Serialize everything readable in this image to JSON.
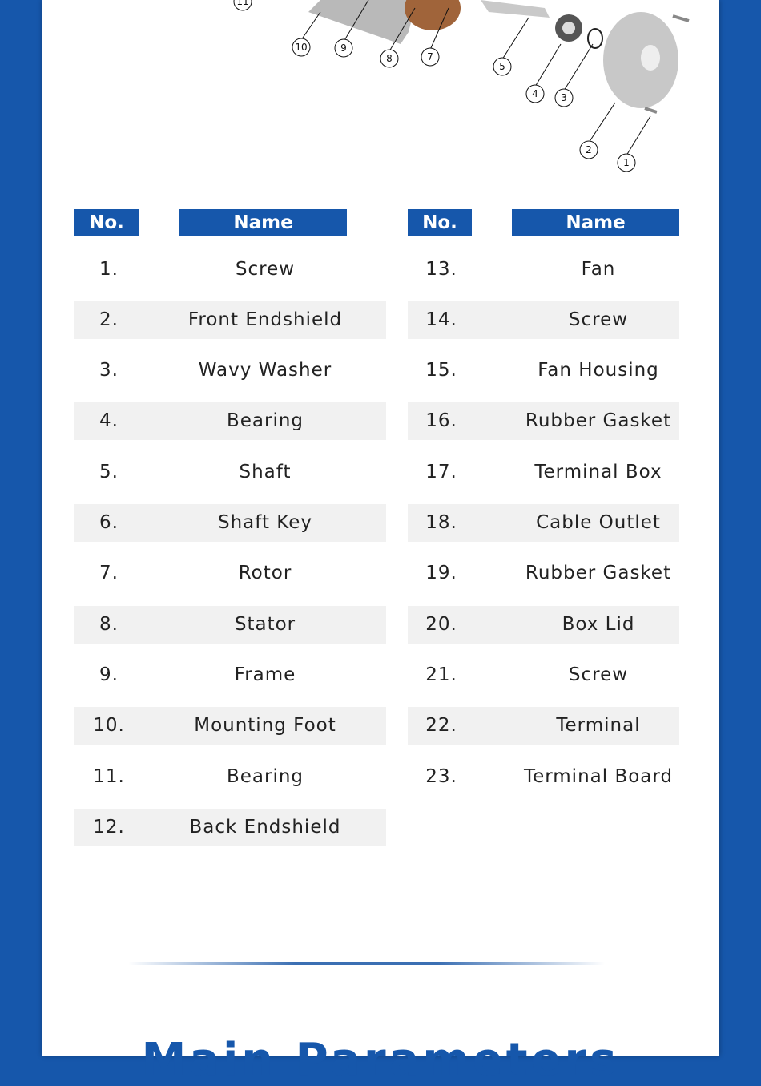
{
  "diagram": {
    "callouts": [
      "1",
      "2",
      "3",
      "4",
      "5",
      "7",
      "8",
      "9",
      "10",
      "11"
    ]
  },
  "table": {
    "headers": {
      "no": "No.",
      "name": "Name"
    },
    "left": [
      {
        "no": "1.",
        "name": "Screw"
      },
      {
        "no": "2.",
        "name": "Front Endshield"
      },
      {
        "no": "3.",
        "name": "Wavy Washer"
      },
      {
        "no": "4.",
        "name": "Bearing"
      },
      {
        "no": "5.",
        "name": "Shaft"
      },
      {
        "no": "6.",
        "name": "Shaft Key"
      },
      {
        "no": "7.",
        "name": "Rotor"
      },
      {
        "no": "8.",
        "name": "Stator"
      },
      {
        "no": "9.",
        "name": "Frame"
      },
      {
        "no": "10.",
        "name": "Mounting Foot"
      },
      {
        "no": "11.",
        "name": "Bearing"
      },
      {
        "no": "12.",
        "name": "Back Endshield"
      }
    ],
    "right": [
      {
        "no": "13.",
        "name": "Fan"
      },
      {
        "no": "14.",
        "name": "Screw"
      },
      {
        "no": "15.",
        "name": "Fan Housing"
      },
      {
        "no": "16.",
        "name": "Rubber Gasket"
      },
      {
        "no": "17.",
        "name": "Terminal Box"
      },
      {
        "no": "18.",
        "name": "Cable Outlet"
      },
      {
        "no": "19.",
        "name": "Rubber Gasket"
      },
      {
        "no": "20.",
        "name": "Box Lid"
      },
      {
        "no": "21.",
        "name": "Screw"
      },
      {
        "no": "22.",
        "name": "Terminal"
      },
      {
        "no": "23.",
        "name": "Terminal Board"
      }
    ]
  },
  "section_title": "Main Parameters",
  "colors": {
    "brand": "#1657ab",
    "stripe": "#f1f1f1"
  }
}
